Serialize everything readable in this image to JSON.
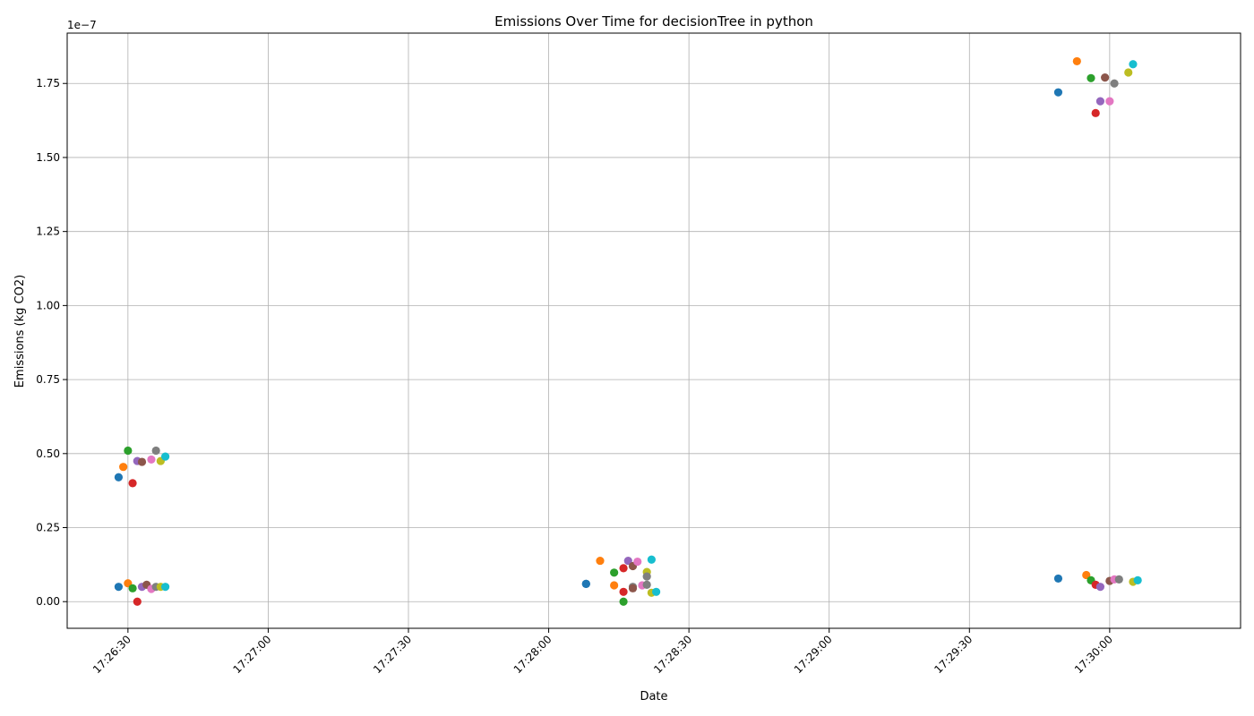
{
  "chart_data": {
    "type": "scatter",
    "title": "Emissions Over Time for decisionTree in python",
    "xlabel": "Date",
    "ylabel": "Emissions (kg CO2)",
    "y_offset_label": "1e−7",
    "xlim": [
      "17:26:17",
      "17:30:28"
    ],
    "ylim": [
      -0.09,
      1.92
    ],
    "x_ticks": [
      "17:26:30",
      "17:27:00",
      "17:27:30",
      "17:28:00",
      "17:28:30",
      "17:29:00",
      "17:29:30",
      "17:30:00"
    ],
    "y_ticks": [
      "0.00",
      "0.25",
      "0.50",
      "0.75",
      "1.00",
      "1.25",
      "1.50",
      "1.75"
    ],
    "grid": true,
    "x_tick_rotation": 45,
    "points": [
      {
        "x": "17:26:28",
        "y": 0.42,
        "color": "#1f77b4"
      },
      {
        "x": "17:26:29",
        "y": 0.455,
        "color": "#ff7f0e"
      },
      {
        "x": "17:26:30",
        "y": 0.51,
        "color": "#2ca02c"
      },
      {
        "x": "17:26:31",
        "y": 0.4,
        "color": "#d62728"
      },
      {
        "x": "17:26:32",
        "y": 0.475,
        "color": "#9467bd"
      },
      {
        "x": "17:26:33",
        "y": 0.472,
        "color": "#8c564b"
      },
      {
        "x": "17:26:35",
        "y": 0.48,
        "color": "#e377c2"
      },
      {
        "x": "17:26:36",
        "y": 0.51,
        "color": "#7f7f7f"
      },
      {
        "x": "17:26:37",
        "y": 0.475,
        "color": "#bcbd22"
      },
      {
        "x": "17:26:38",
        "y": 0.49,
        "color": "#17becf"
      },
      {
        "x": "17:26:28",
        "y": 0.05,
        "color": "#1f77b4"
      },
      {
        "x": "17:26:30",
        "y": 0.062,
        "color": "#ff7f0e"
      },
      {
        "x": "17:26:31",
        "y": 0.045,
        "color": "#2ca02c"
      },
      {
        "x": "17:26:32",
        "y": 0.0,
        "color": "#d62728"
      },
      {
        "x": "17:26:33",
        "y": 0.05,
        "color": "#9467bd"
      },
      {
        "x": "17:26:34",
        "y": 0.057,
        "color": "#8c564b"
      },
      {
        "x": "17:26:35",
        "y": 0.043,
        "color": "#e377c2"
      },
      {
        "x": "17:26:36",
        "y": 0.05,
        "color": "#7f7f7f"
      },
      {
        "x": "17:26:37",
        "y": 0.05,
        "color": "#bcbd22"
      },
      {
        "x": "17:26:38",
        "y": 0.05,
        "color": "#17becf"
      },
      {
        "x": "17:28:08",
        "y": 0.06,
        "color": "#1f77b4"
      },
      {
        "x": "17:28:08",
        "y": 0.06,
        "color": "#1f77b4"
      },
      {
        "x": "17:28:11",
        "y": 0.138,
        "color": "#ff7f0e"
      },
      {
        "x": "17:28:14",
        "y": 0.098,
        "color": "#2ca02c"
      },
      {
        "x": "17:28:14",
        "y": 0.055,
        "color": "#ff7f0e"
      },
      {
        "x": "17:28:16",
        "y": 0.113,
        "color": "#d62728"
      },
      {
        "x": "17:28:16",
        "y": 0.033,
        "color": "#d62728"
      },
      {
        "x": "17:28:16",
        "y": 0.0,
        "color": "#2ca02c"
      },
      {
        "x": "17:28:17",
        "y": 0.138,
        "color": "#9467bd"
      },
      {
        "x": "17:28:18",
        "y": 0.12,
        "color": "#8c564b"
      },
      {
        "x": "17:28:18",
        "y": 0.05,
        "color": "#7f7f7f"
      },
      {
        "x": "17:28:18",
        "y": 0.045,
        "color": "#8c564b"
      },
      {
        "x": "17:28:19",
        "y": 0.135,
        "color": "#e377c2"
      },
      {
        "x": "17:28:20",
        "y": 0.055,
        "color": "#e377c2"
      },
      {
        "x": "17:28:21",
        "y": 0.1,
        "color": "#bcbd22"
      },
      {
        "x": "17:28:21",
        "y": 0.085,
        "color": "#7f7f7f"
      },
      {
        "x": "17:28:21",
        "y": 0.057,
        "color": "#7f7f7f"
      },
      {
        "x": "17:28:22",
        "y": 0.142,
        "color": "#17becf"
      },
      {
        "x": "17:28:22",
        "y": 0.03,
        "color": "#bcbd22"
      },
      {
        "x": "17:28:23",
        "y": 0.033,
        "color": "#17becf"
      },
      {
        "x": "17:29:49",
        "y": 1.72,
        "color": "#1f77b4"
      },
      {
        "x": "17:29:53",
        "y": 1.825,
        "color": "#ff7f0e"
      },
      {
        "x": "17:29:56",
        "y": 1.768,
        "color": "#2ca02c"
      },
      {
        "x": "17:29:57",
        "y": 1.65,
        "color": "#d62728"
      },
      {
        "x": "17:29:58",
        "y": 1.69,
        "color": "#9467bd"
      },
      {
        "x": "17:29:59",
        "y": 1.77,
        "color": "#8c564b"
      },
      {
        "x": "17:30:00",
        "y": 1.69,
        "color": "#e377c2"
      },
      {
        "x": "17:30:01",
        "y": 1.75,
        "color": "#7f7f7f"
      },
      {
        "x": "17:30:04",
        "y": 1.787,
        "color": "#bcbd22"
      },
      {
        "x": "17:30:05",
        "y": 1.815,
        "color": "#17becf"
      },
      {
        "x": "17:29:49",
        "y": 0.078,
        "color": "#1f77b4"
      },
      {
        "x": "17:29:55",
        "y": 0.09,
        "color": "#ff7f0e"
      },
      {
        "x": "17:29:56",
        "y": 0.072,
        "color": "#2ca02c"
      },
      {
        "x": "17:29:57",
        "y": 0.057,
        "color": "#d62728"
      },
      {
        "x": "17:29:58",
        "y": 0.05,
        "color": "#9467bd"
      },
      {
        "x": "17:30:00",
        "y": 0.07,
        "color": "#8c564b"
      },
      {
        "x": "17:30:01",
        "y": 0.075,
        "color": "#e377c2"
      },
      {
        "x": "17:30:02",
        "y": 0.075,
        "color": "#7f7f7f"
      },
      {
        "x": "17:30:05",
        "y": 0.067,
        "color": "#bcbd22"
      },
      {
        "x": "17:30:06",
        "y": 0.072,
        "color": "#17becf"
      }
    ]
  }
}
